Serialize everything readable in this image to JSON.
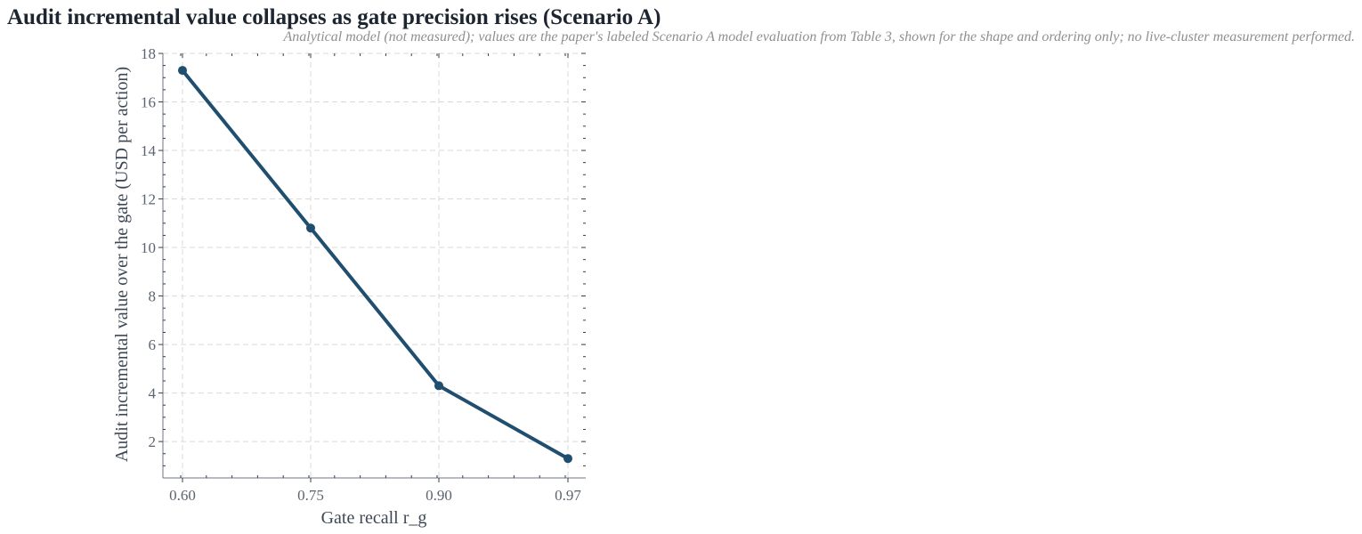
{
  "chart_data": {
    "type": "line",
    "title": "Audit incremental value collapses as gate precision rises (Scenario A)",
    "subtitle": "Analytical model (not measured); values are the paper's labeled Scenario A model evaluation from Table 3, shown for the shape and ordering only; no live-cluster measurement performed.",
    "xlabel": "Gate recall r_g",
    "ylabel": "Audit incremental value over the gate (USD per action)",
    "categories": [
      "0.60",
      "0.75",
      "0.90",
      "0.97"
    ],
    "x": [
      0.6,
      0.75,
      0.9,
      0.97
    ],
    "y_ticks": [
      2,
      4,
      6,
      8,
      10,
      12,
      14,
      16,
      18
    ],
    "ylim": [
      0.5,
      18
    ],
    "series": [
      {
        "values": [
          17.3,
          10.8,
          4.3,
          1.3
        ],
        "color": "#1f4e6e"
      }
    ],
    "grid": true,
    "legend": "none"
  }
}
